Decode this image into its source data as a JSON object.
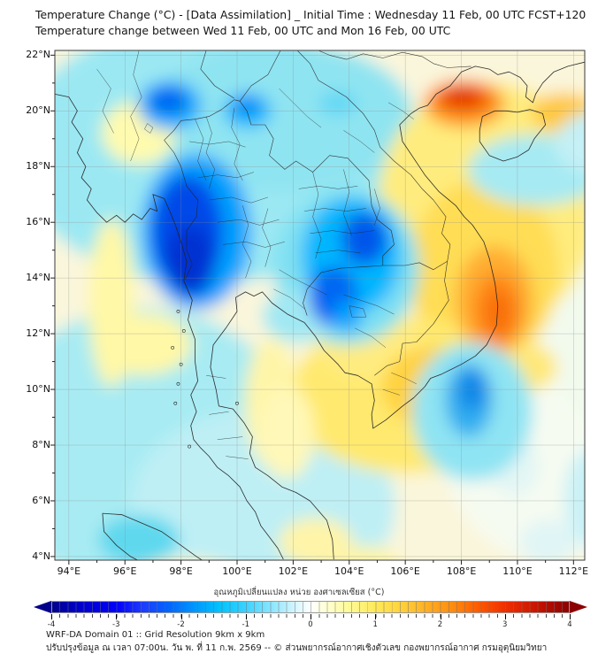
{
  "header": {
    "title_line1": "Temperature Change (°C) - [Data Assimilation] _ Initial Time : Wednesday 11 Feb, 00 UTC FCST+120",
    "title_line2": "Temperature change between Wed 11 Feb, 00 UTC and Mon 16 Feb, 00 UTC"
  },
  "map": {
    "lat_labels": [
      "22°N",
      "20°N",
      "18°N",
      "16°N",
      "14°N",
      "12°N",
      "10°N",
      "8°N",
      "6°N",
      "4°N"
    ],
    "lon_labels": [
      "94°E",
      "96°E",
      "98°E",
      "100°E",
      "102°E",
      "104°E",
      "106°E",
      "108°E",
      "110°E",
      "112°E"
    ]
  },
  "colorbar": {
    "title": "อุณหภูมิเปลี่ยนแปลง หน่วย องศาเซลเซียส (°C)",
    "tick_labels": [
      "-4",
      "-3",
      "-2",
      "-1",
      "0",
      "1",
      "2",
      "3",
      "4"
    ],
    "min": -4,
    "max": 4,
    "gradient": [
      [
        -4,
        "#00008B"
      ],
      [
        -3.6,
        "#0000C8"
      ],
      [
        -3,
        "#0000FA"
      ],
      [
        -2.6,
        "#1E3CFF"
      ],
      [
        -2.2,
        "#0064FF"
      ],
      [
        -1.8,
        "#0096FF"
      ],
      [
        -1.4,
        "#00C3FF"
      ],
      [
        -1,
        "#3CD2FF"
      ],
      [
        -0.6,
        "#8CE6FF"
      ],
      [
        -0.25,
        "#D2F5FF"
      ],
      [
        0,
        "#FFFFFF"
      ],
      [
        0.25,
        "#FFFFD2"
      ],
      [
        0.6,
        "#FFFA96"
      ],
      [
        1,
        "#FFE95A"
      ],
      [
        1.4,
        "#FFD23C"
      ],
      [
        1.8,
        "#FFAF24"
      ],
      [
        2.2,
        "#FF8C0F"
      ],
      [
        2.6,
        "#FF5A00"
      ],
      [
        3,
        "#F03000"
      ],
      [
        3.5,
        "#C81400"
      ],
      [
        4,
        "#8B0000"
      ]
    ]
  },
  "footer": {
    "line1": "WRF-DA Domain 01 :: Grid Resolution 9km x 9km",
    "line2": "ปรับปรุงข้อมูล ณ เวลา 07:00น. วัน พ. ที่ 11 ก.พ. 2569 -- © ส่วนพยากรณ์อากาศเชิงตัวเลข กองพยากรณ์อากาศ กรมอุตุนิยมวิทยา"
  },
  "map_features": [
    "Strong cooling (-3 to -4 C) over western Myanmar",
    "Cooling (-1 to -3 C) over northern and northeastern Thailand",
    "Cooling pocket over the Mekong Delta",
    "Warming (+2 to +3 C) over southern Laos and the central Vietnam coast",
    "Warming band (+2 to +3 C) along the northern Vietnam-China border",
    "Mild warming (+0.5 to +1.5 C) over Cambodia and central Thailand",
    "Slight cooling (-0.5 to -1 C) over the Andaman Sea and Gulf of Tonkin"
  ]
}
